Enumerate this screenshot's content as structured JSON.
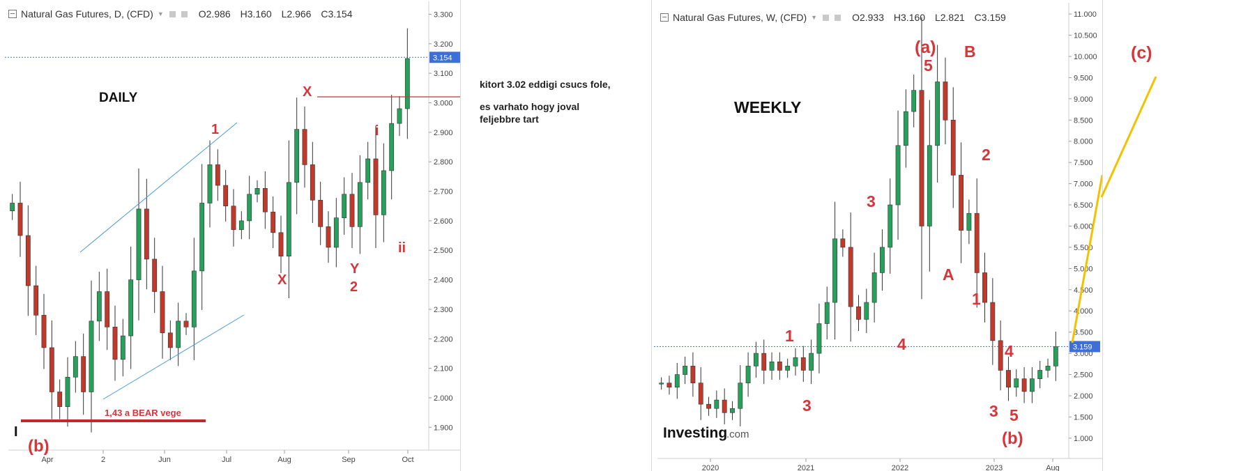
{
  "daily": {
    "legend": {
      "title": "Natural Gas Futures, D, (CFD)",
      "open": "O2.986",
      "high": "H3.160",
      "low": "L2.966",
      "close": "C3.154"
    },
    "price_tag": "3.154",
    "labels": {
      "timeframe": "DAILY",
      "one": "1",
      "x_top": "X",
      "i": "i",
      "ii": "ii",
      "x_low": "X",
      "y": "Y",
      "two": "2",
      "b": "(b)",
      "bear": "1,43  a BEAR vege",
      "cursor": "I"
    }
  },
  "note": {
    "line1": "kitort 3.02 eddigi csucs fole,",
    "line2": "es varhato hogy joval feljebbre tart"
  },
  "weekly": {
    "legend": {
      "title": "Natural Gas Futures, W, (CFD)",
      "open": "O2.933",
      "high": "H3.160",
      "low": "L2.821",
      "close": "C3.159"
    },
    "price_tag": "3.159",
    "brand": "Investing",
    "brand_suffix": ".com",
    "labels": {
      "timeframe": "WEEKLY",
      "a_wave": "(a)",
      "five_top": "5",
      "B": "B",
      "three_mid": "3",
      "two": "2",
      "A": "A",
      "one_right": "1",
      "one_left": "1",
      "four_left": "4",
      "four_right": "4",
      "three_low": "3",
      "three_right": "3",
      "five_right": "5",
      "b": "(b)",
      "c": "(c)"
    }
  },
  "chart_data": [
    {
      "type": "candlestick",
      "title": "Natural Gas Futures, D, (CFD)",
      "x_ticks": [
        "Apr",
        "2",
        "Jun",
        "Jul",
        "Aug",
        "Sep",
        "Oct"
      ],
      "y_ticks": [
        1.9,
        2.0,
        2.1,
        2.2,
        2.3,
        2.4,
        2.5,
        2.6,
        2.7,
        2.8,
        2.9,
        3.0,
        3.1,
        3.2,
        3.3
      ],
      "ylim": [
        1.87,
        3.32
      ],
      "ohlc": {
        "open": 2.986,
        "high": 3.16,
        "low": 2.966,
        "close": 3.154
      },
      "last_price": 3.154,
      "approx_closes": [
        2.66,
        2.55,
        2.38,
        2.28,
        2.17,
        2.02,
        1.97,
        2.07,
        2.14,
        2.02,
        2.26,
        2.36,
        2.24,
        2.13,
        2.21,
        2.4,
        2.64,
        2.47,
        2.36,
        2.22,
        2.17,
        2.26,
        2.24,
        2.43,
        2.66,
        2.79,
        2.72,
        2.65,
        2.57,
        2.6,
        2.69,
        2.71,
        2.63,
        2.56,
        2.48,
        2.73,
        2.91,
        2.79,
        2.67,
        2.58,
        2.51,
        2.61,
        2.69,
        2.58,
        2.73,
        2.81,
        2.62,
        2.77,
        2.93,
        2.98,
        3.15
      ],
      "horizontal_levels": [
        3.02,
        1.95
      ]
    },
    {
      "type": "candlestick",
      "title": "Natural Gas Futures, W, (CFD)",
      "x_ticks": [
        "2020",
        "2021",
        "2022",
        "2023",
        "Aug"
      ],
      "y_ticks": [
        1.0,
        1.5,
        2.0,
        2.5,
        3.0,
        3.5,
        4.0,
        4.5,
        5.0,
        5.5,
        6.0,
        6.5,
        7.0,
        7.5,
        8.0,
        8.5,
        9.0,
        9.5,
        10.0,
        10.5,
        11.0
      ],
      "ylim": [
        0.85,
        11.1
      ],
      "ohlc": {
        "open": 2.933,
        "high": 3.16,
        "low": 2.821,
        "close": 3.159
      },
      "last_price": 3.159,
      "approx_closes": [
        2.3,
        2.2,
        2.5,
        2.7,
        2.3,
        1.8,
        1.7,
        1.9,
        1.6,
        1.7,
        2.3,
        2.7,
        3.0,
        2.6,
        2.8,
        2.6,
        2.7,
        2.9,
        2.6,
        3.0,
        3.7,
        4.2,
        5.7,
        5.5,
        4.1,
        3.8,
        4.2,
        4.9,
        5.5,
        6.5,
        7.9,
        8.7,
        9.2,
        6.0,
        7.9,
        9.4,
        8.5,
        7.2,
        5.9,
        6.3,
        4.9,
        4.2,
        3.3,
        2.6,
        2.2,
        2.4,
        2.1,
        2.4,
        2.6,
        2.7,
        3.16
      ],
      "horizontal_levels": [
        3.159
      ]
    }
  ]
}
